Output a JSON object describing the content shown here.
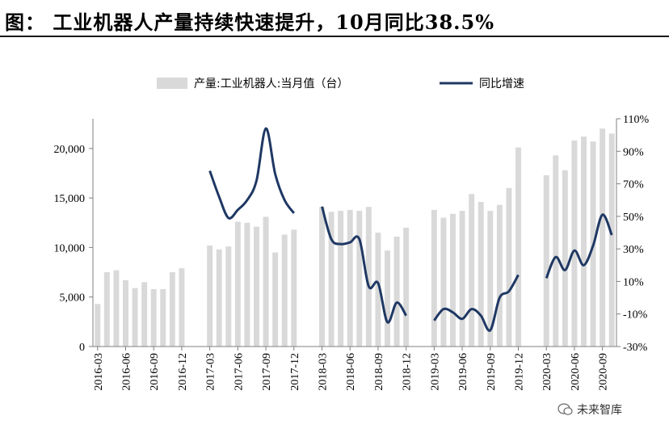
{
  "title": "图：  工业机器人产量持续快速提升，10月同比38.5%",
  "watermark": "未来智库",
  "colors": {
    "bar": "#d9d9d9",
    "line": "#1f3864",
    "axis": "#808080"
  },
  "chart_data": {
    "type": "bar+line",
    "legend": [
      "产量:工业机器人:当月值（台）",
      "同比增速"
    ],
    "legend_position": "top",
    "x": [
      "2016-03",
      "2016-04",
      "2016-05",
      "2016-06",
      "2016-07",
      "2016-08",
      "2016-09",
      "2016-10",
      "2016-11",
      "2016-12",
      "2017-01",
      "2017-02",
      "2017-03",
      "2017-04",
      "2017-05",
      "2017-06",
      "2017-07",
      "2017-08",
      "2017-09",
      "2017-10",
      "2017-11",
      "2017-12",
      "2018-01",
      "2018-02",
      "2018-03",
      "2018-04",
      "2018-05",
      "2018-06",
      "2018-07",
      "2018-08",
      "2018-09",
      "2018-10",
      "2018-11",
      "2018-12",
      "2019-01",
      "2019-02",
      "2019-03",
      "2019-04",
      "2019-05",
      "2019-06",
      "2019-07",
      "2019-08",
      "2019-09",
      "2019-10",
      "2019-11",
      "2019-12",
      "2020-01",
      "2020-02",
      "2020-03",
      "2020-04",
      "2020-05",
      "2020-06",
      "2020-07",
      "2020-08",
      "2020-09",
      "2020-10"
    ],
    "x_tick_labels": [
      "2016-03",
      "2016-06",
      "2016-09",
      "2016-12",
      "2017-03",
      "2017-06",
      "2017-09",
      "2017-12",
      "2018-03",
      "2018-06",
      "2018-09",
      "2018-12",
      "2019-03",
      "2019-06",
      "2019-09",
      "2019-12",
      "2020-03",
      "2020-06",
      "2020-09"
    ],
    "series": [
      {
        "name": "产量:工业机器人:当月值（台）",
        "axis": "left",
        "type": "bar",
        "values": [
          4300,
          7500,
          7700,
          6700,
          5900,
          6500,
          5800,
          5800,
          7500,
          7900,
          null,
          null,
          10200,
          9800,
          10100,
          12600,
          12500,
          12100,
          13100,
          9500,
          11300,
          11800,
          null,
          null,
          14100,
          13600,
          13700,
          13800,
          13700,
          14100,
          11500,
          9700,
          11100,
          12000,
          null,
          null,
          13800,
          13000,
          13400,
          13700,
          15400,
          14600,
          13700,
          14300,
          16000,
          20100,
          null,
          null,
          17300,
          19300,
          17800,
          20800,
          21200,
          20700,
          22000,
          21500
        ]
      },
      {
        "name": "同比增速",
        "axis": "right",
        "type": "line",
        "values": [
          null,
          null,
          null,
          null,
          null,
          null,
          null,
          null,
          null,
          null,
          null,
          null,
          78,
          62,
          49,
          54,
          60,
          72,
          104,
          76,
          60,
          52,
          null,
          null,
          56,
          36,
          33,
          34,
          36,
          7,
          9,
          -15,
          -3,
          -11,
          null,
          null,
          -14,
          -7,
          -9,
          -13,
          -7,
          -11,
          -20,
          0,
          4,
          14,
          null,
          null,
          12,
          25,
          17,
          29,
          20,
          32,
          51,
          38.5
        ]
      }
    ],
    "y_left": {
      "ticks": [
        "0",
        "5,000",
        "10,000",
        "15,000",
        "20,000"
      ],
      "range": [
        0,
        23000
      ]
    },
    "y_right": {
      "ticks": [
        "-30%",
        "-10%",
        "10%",
        "30%",
        "50%",
        "70%",
        "90%",
        "110%"
      ],
      "range": [
        -30,
        110
      ]
    }
  }
}
